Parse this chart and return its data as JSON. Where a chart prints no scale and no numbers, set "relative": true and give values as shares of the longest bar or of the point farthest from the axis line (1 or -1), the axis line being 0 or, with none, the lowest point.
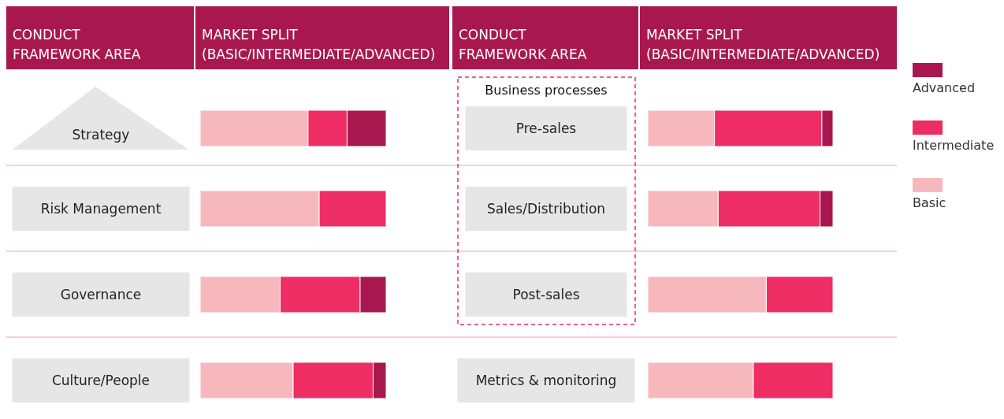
{
  "chart_data": [
    {
      "type": "bar",
      "orientation": "horizontal",
      "stacked": true,
      "relative": true,
      "ylabel": "CONDUCT FRAMEWORK AREA",
      "xlabel": "MARKET SPLIT (BASIC/INTERMEDIATE/ADVANCED)",
      "categories": [
        "Strategy",
        "Risk Management",
        "Governance",
        "Culture/People"
      ],
      "series": [
        {
          "color": "#f7b8bd",
          "values": [
            0.58,
            0.64,
            0.43,
            0.5
          ]
        },
        {
          "color": "#ee2d64",
          "values": [
            0.21,
            0.36,
            0.43,
            0.43
          ]
        },
        {
          "color": "#a8184e",
          "values": [
            0.21,
            0,
            0.14,
            0.07
          ]
        }
      ]
    },
    {
      "type": "bar",
      "orientation": "horizontal",
      "stacked": true,
      "relative": true,
      "ylabel": "CONDUCT FRAMEWORK AREA",
      "xlabel": "MARKET SPLIT (BASIC/INTERMEDIATE/ADVANCED)",
      "categories": [
        "Pre-sales",
        "Sales/Distribution",
        "Post-sales",
        "Metrics & monitoring"
      ],
      "annotations": [
        "Business processes"
      ],
      "legend": "right",
      "series": [
        {
          "name": "Basic",
          "color": "#f7b8bd",
          "values": [
            0.36,
            0.38,
            0.64,
            0.57
          ]
        },
        {
          "name": "Intermediate",
          "color": "#ee2d64",
          "values": [
            0.58,
            0.55,
            0.36,
            0.43
          ]
        },
        {
          "name": "Advanced",
          "color": "#a8184e",
          "values": [
            0.06,
            0.07,
            0,
            0
          ]
        }
      ]
    }
  ]
}
